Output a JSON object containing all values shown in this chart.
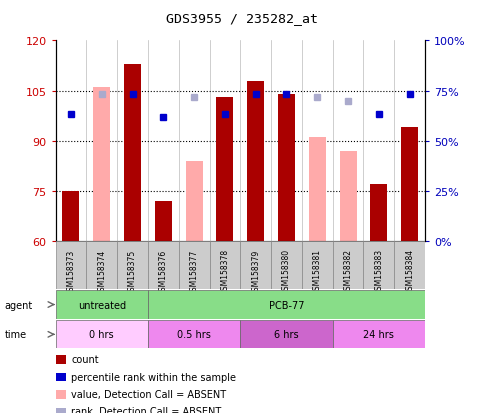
{
  "title": "GDS3955 / 235282_at",
  "samples": [
    "GSM158373",
    "GSM158374",
    "GSM158375",
    "GSM158376",
    "GSM158377",
    "GSM158378",
    "GSM158379",
    "GSM158380",
    "GSM158381",
    "GSM158382",
    "GSM158383",
    "GSM158384"
  ],
  "count_values": [
    75,
    null,
    113,
    72,
    null,
    103,
    108,
    104,
    null,
    null,
    77,
    94
  ],
  "absent_bar_values": [
    null,
    106,
    null,
    null,
    84,
    null,
    null,
    null,
    91,
    87,
    null,
    null
  ],
  "rank_present_y": [
    98,
    null,
    104,
    97,
    null,
    98,
    104,
    104,
    null,
    null,
    98,
    104
  ],
  "rank_absent_y": [
    null,
    104,
    null,
    null,
    103,
    null,
    null,
    null,
    103,
    102,
    null,
    null
  ],
  "ylim": [
    60,
    120
  ],
  "yticks": [
    60,
    75,
    90,
    105,
    120
  ],
  "ytick_labels": [
    "60",
    "75",
    "90",
    "105",
    "120"
  ],
  "y2lim": [
    0,
    100
  ],
  "y2ticks": [
    0,
    25,
    50,
    75,
    100
  ],
  "y2tick_labels": [
    "0%",
    "25%",
    "50%",
    "75%",
    "100%"
  ],
  "bar_color_dark": "#aa0000",
  "bar_color_light": "#ffaaaa",
  "dot_color_dark": "#0000cc",
  "dot_color_light": "#aaaacc",
  "tick_box_color": "#cccccc",
  "agent_group_color": "#88dd88",
  "time_group_colors": [
    "#ffccff",
    "#ee88ee",
    "#cc66cc",
    "#ee88ee"
  ],
  "legend_items": [
    {
      "label": "count",
      "color": "#aa0000"
    },
    {
      "label": "percentile rank within the sample",
      "color": "#0000cc"
    },
    {
      "label": "value, Detection Call = ABSENT",
      "color": "#ffaaaa"
    },
    {
      "label": "rank, Detection Call = ABSENT",
      "color": "#aaaacc"
    }
  ],
  "y_tick_color": "#cc0000",
  "y2_tick_color": "#0000bb"
}
